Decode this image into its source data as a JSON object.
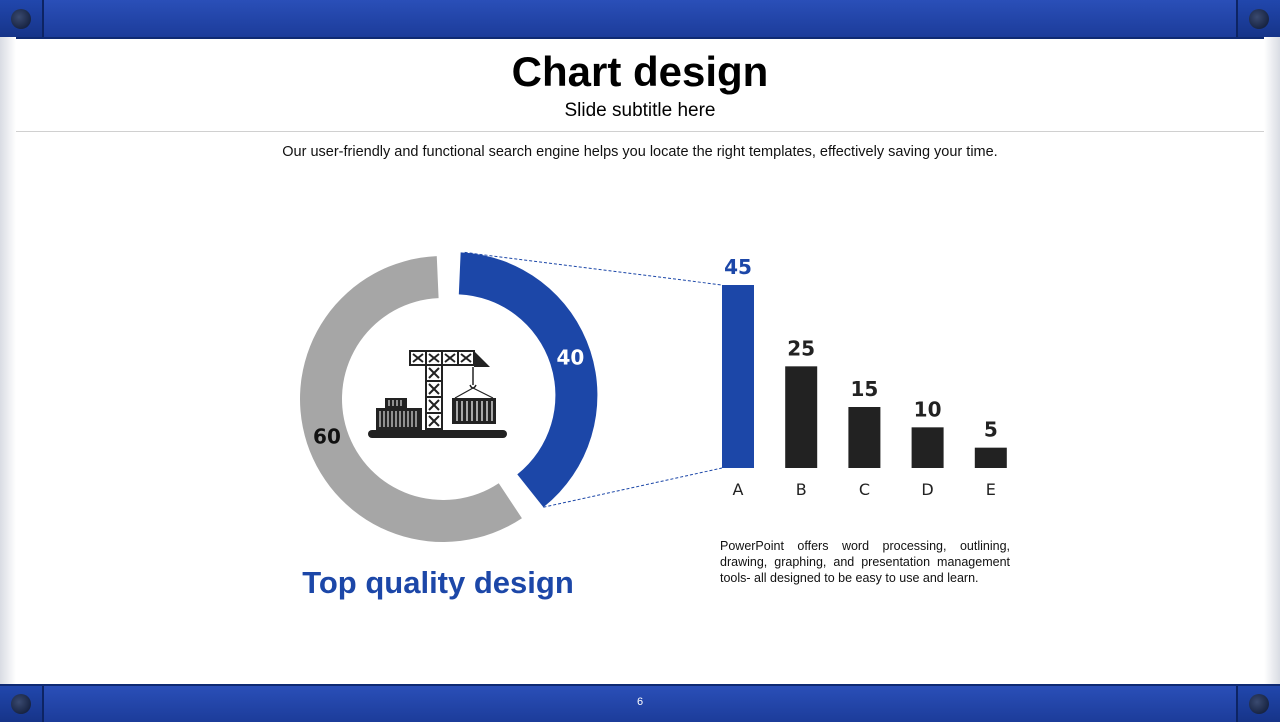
{
  "slide": {
    "title": "Chart design",
    "subtitle": "Slide subtitle here",
    "intro": "Our user-friendly and functional search engine helps you locate the right templates, effectively saving your time.",
    "heading": "Top quality design",
    "description": "PowerPoint offers word processing, outlining, drawing, graphing, and presentation management tools- all designed to be easy to use and learn.",
    "page_number": "6"
  },
  "colors": {
    "accent": "#1c47a8",
    "dark": "#222222",
    "gray": "#a6a6a6",
    "frame": "#1f45b0"
  },
  "icon": "harbor-crane-containers-icon",
  "chart_data": [
    {
      "type": "pie",
      "variant": "donut",
      "slices": [
        {
          "label": "40",
          "value": 40,
          "color": "#1c47a8",
          "exploded": true
        },
        {
          "label": "60",
          "value": 60,
          "color": "#a6a6a6"
        }
      ]
    },
    {
      "type": "bar",
      "categories": [
        "A",
        "B",
        "C",
        "D",
        "E"
      ],
      "values": [
        45,
        25,
        15,
        10,
        5
      ],
      "value_labels": [
        "45",
        "25",
        "15",
        "10",
        "5"
      ],
      "colors": [
        "#1c47a8",
        "#222222",
        "#222222",
        "#222222",
        "#222222"
      ],
      "ylim": [
        0,
        45
      ],
      "grid": false
    }
  ]
}
